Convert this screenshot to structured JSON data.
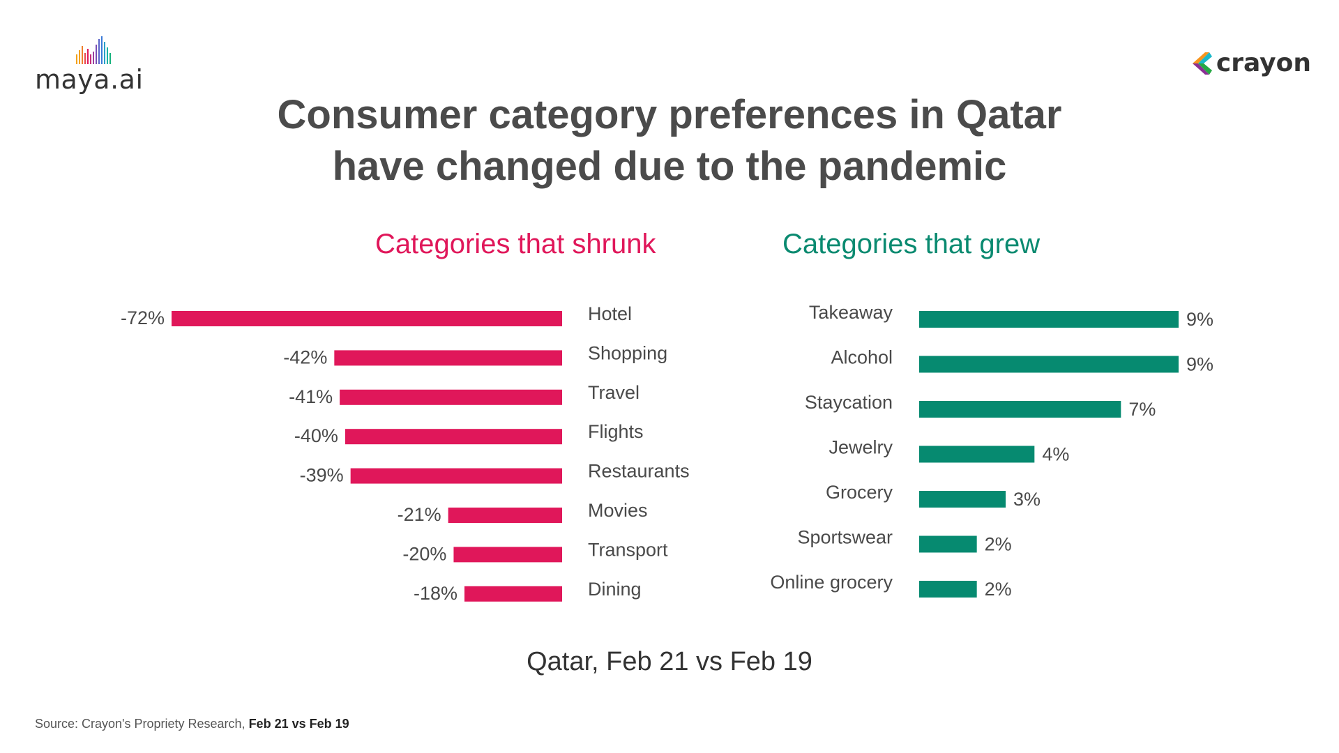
{
  "brand": {
    "maya": "maya.ai",
    "crayon": "crayon"
  },
  "title_line1": "Consumer category preferences in Qatar",
  "title_line2": "have changed due to the pandemic",
  "subtitle_left": "Categories that shrunk",
  "subtitle_right": "Categories that grew",
  "caption": "Qatar, Feb 21 vs Feb 19",
  "source_prefix": "Source: Crayon's Propriety Research, ",
  "source_bold": "Feb 21 vs Feb 19",
  "colors": {
    "shrunk": "#e0175a",
    "grew": "#068a70",
    "text": "#4a4a4a"
  },
  "chart_data": [
    {
      "type": "bar",
      "orientation": "horizontal",
      "title": "Categories that shrunk",
      "categories": [
        "Hotel",
        "Shopping",
        "Travel",
        "Flights",
        "Restaurants",
        "Movies",
        "Transport",
        "Dining"
      ],
      "values": [
        -72,
        -42,
        -41,
        -40,
        -39,
        -21,
        -20,
        -18
      ],
      "value_labels": [
        "-72%",
        "-42%",
        "-41%",
        "-40%",
        "-39%",
        "-21%",
        "-20%",
        "-18%"
      ],
      "unit": "%"
    },
    {
      "type": "bar",
      "orientation": "horizontal",
      "title": "Categories that grew",
      "categories": [
        "Takeaway",
        "Alcohol",
        "Staycation",
        "Jewelry",
        "Grocery",
        "Sportswear",
        "Online grocery"
      ],
      "values": [
        9,
        9,
        7,
        4,
        3,
        2,
        2
      ],
      "value_labels": [
        "9%",
        "9%",
        "7%",
        "4%",
        "3%",
        "2%",
        "2%"
      ],
      "unit": "%"
    }
  ]
}
